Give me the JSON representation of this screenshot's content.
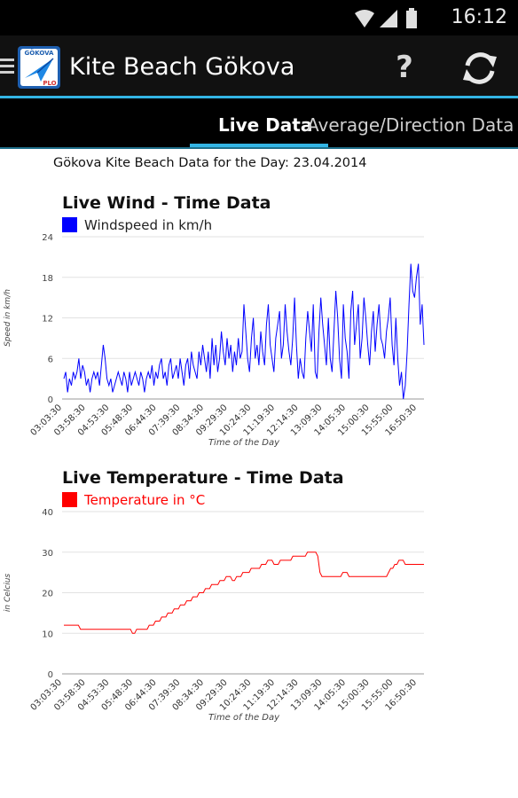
{
  "status_bar": {
    "time": "16:12"
  },
  "action_bar": {
    "title": "Kite Beach Gökova",
    "logo_text_top": "GÖKOVA",
    "logo_text_bottom": "PLO"
  },
  "tabs": [
    {
      "label": "Live Data",
      "active": true
    },
    {
      "label": "Average/Direction Data",
      "active": false
    }
  ],
  "colors": {
    "wind": "#0000ff",
    "temperature": "#ff0000",
    "accent": "#33b5e5"
  },
  "day_heading": "Gökova Kite Beach Data for the Day: 23.04.2014",
  "time_labels": [
    "03:03:30",
    "03:58:30",
    "04:53:30",
    "05:48:30",
    "06:44:30",
    "07:39:30",
    "08:34:30",
    "09:29:30",
    "10:24:30",
    "11:19:30",
    "12:14:30",
    "13:09:30",
    "14:05:30",
    "15:00:30",
    "15:55:00",
    "16:50:30"
  ],
  "chart_data": [
    {
      "type": "line",
      "title": "Live Wind - Time Data",
      "xlabel": "Time of the Day",
      "ylabel": "Speed in km/h",
      "ylim": [
        0,
        24
      ],
      "yticks": [
        0,
        6,
        12,
        18,
        24
      ],
      "grid": true,
      "legend": "top-left",
      "series": [
        {
          "name": "Windspeed in km/h",
          "color": "#0000ff",
          "values": [
            3,
            4,
            1,
            3,
            2,
            4,
            3,
            4,
            6,
            3,
            5,
            4,
            2,
            3,
            1,
            3,
            4,
            3,
            4,
            2,
            5,
            8,
            6,
            3,
            2,
            3,
            1,
            2,
            3,
            4,
            3,
            2,
            4,
            3,
            1,
            4,
            2,
            3,
            4,
            3,
            2,
            4,
            3,
            1,
            3,
            4,
            3,
            5,
            2,
            4,
            3,
            5,
            6,
            3,
            4,
            2,
            5,
            6,
            3,
            4,
            5,
            3,
            6,
            4,
            2,
            5,
            6,
            3,
            7,
            5,
            4,
            3,
            7,
            5,
            8,
            6,
            4,
            7,
            3,
            9,
            5,
            8,
            4,
            6,
            10,
            7,
            5,
            9,
            6,
            8,
            4,
            7,
            5,
            9,
            6,
            7,
            14,
            10,
            6,
            4,
            9,
            12,
            6,
            8,
            5,
            10,
            7,
            5,
            11,
            14,
            8,
            6,
            4,
            9,
            11,
            13,
            6,
            8,
            14,
            10,
            7,
            5,
            9,
            15,
            8,
            3,
            6,
            4,
            3,
            9,
            13,
            10,
            7,
            14,
            4,
            3,
            10,
            15,
            11,
            8,
            5,
            12,
            6,
            4,
            10,
            16,
            12,
            6,
            3,
            14,
            9,
            7,
            3,
            13,
            16,
            8,
            11,
            14,
            6,
            9,
            15,
            12,
            8,
            5,
            10,
            13,
            7,
            11,
            14,
            9,
            8,
            6,
            10,
            12,
            15,
            8,
            5,
            12,
            6,
            2,
            4,
            0,
            2,
            7,
            14,
            20,
            16,
            15,
            18,
            20,
            11,
            14,
            8
          ]
        }
      ]
    },
    {
      "type": "line",
      "title": "Live Temperature - Time Data",
      "xlabel": "Time of the Day",
      "ylabel": "in Celcius",
      "ylim": [
        0,
        40
      ],
      "yticks": [
        0,
        10,
        20,
        30,
        40
      ],
      "grid": true,
      "legend": "top-left",
      "series": [
        {
          "name": "Temperature in °C",
          "color": "#ff0000",
          "values": [
            12,
            12,
            12,
            12,
            12,
            12,
            12,
            12,
            11,
            11,
            11,
            11,
            11,
            11,
            11,
            11,
            11,
            11,
            11,
            11,
            11,
            11,
            11,
            11,
            11,
            11,
            11,
            11,
            11,
            11,
            11,
            11,
            11,
            10,
            10,
            11,
            11,
            11,
            11,
            11,
            11,
            12,
            12,
            12,
            13,
            13,
            13,
            14,
            14,
            14,
            15,
            15,
            15,
            16,
            16,
            16,
            17,
            17,
            17,
            18,
            18,
            18,
            19,
            19,
            19,
            20,
            20,
            20,
            21,
            21,
            21,
            22,
            22,
            22,
            22,
            23,
            23,
            23,
            24,
            24,
            24,
            23,
            23,
            24,
            24,
            24,
            25,
            25,
            25,
            25,
            26,
            26,
            26,
            26,
            26,
            27,
            27,
            27,
            28,
            28,
            28,
            27,
            27,
            27,
            28,
            28,
            28,
            28,
            28,
            28,
            29,
            29,
            29,
            29,
            29,
            29,
            29,
            30,
            30,
            30,
            30,
            30,
            29,
            25,
            24,
            24,
            24,
            24,
            24,
            24,
            24,
            24,
            24,
            24,
            25,
            25,
            25,
            24,
            24,
            24,
            24,
            24,
            24,
            24,
            24,
            24,
            24,
            24,
            24,
            24,
            24,
            24,
            24,
            24,
            24,
            24,
            25,
            26,
            26,
            27,
            27,
            28,
            28,
            28,
            27,
            27,
            27,
            27,
            27,
            27,
            27,
            27,
            27,
            27
          ]
        }
      ]
    }
  ]
}
